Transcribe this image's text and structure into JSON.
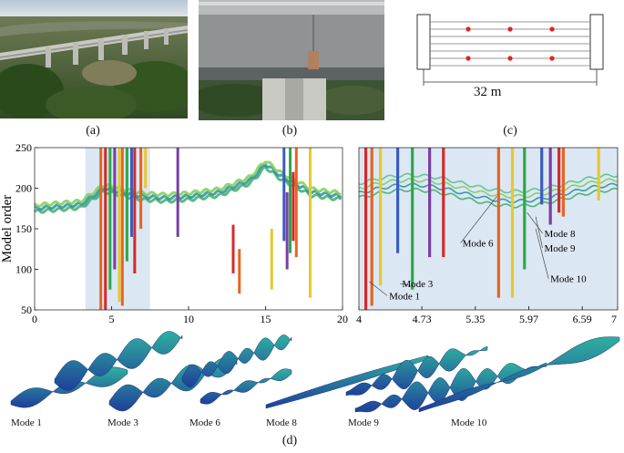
{
  "captions": {
    "a": "(a)",
    "b": "(b)",
    "c": "(c)",
    "d": "(d)"
  },
  "schematic": {
    "span_label": "32 m"
  },
  "chart_data": [
    {
      "type": "scatter",
      "ylabel": "Model order",
      "xlim": [
        0,
        20
      ],
      "ylim": [
        50,
        250
      ],
      "xticks": [
        "0",
        "5",
        "10",
        "15",
        "20"
      ],
      "yticks": [
        "50",
        "100",
        "150",
        "200",
        "250"
      ],
      "highlight_range": [
        3.3,
        7.5
      ],
      "stable_lines": [
        {
          "x": 4.3,
          "y_min": 50,
          "y_max": 250,
          "color": "#e8641e"
        },
        {
          "x": 4.6,
          "y_min": 50,
          "y_max": 250,
          "color": "#d42a2a"
        },
        {
          "x": 4.9,
          "y_min": 75,
          "y_max": 250,
          "color": "#2ea84a"
        },
        {
          "x": 5.2,
          "y_min": 100,
          "y_max": 250,
          "color": "#7a3ea0"
        },
        {
          "x": 5.5,
          "y_min": 60,
          "y_max": 250,
          "color": "#e8c82e"
        },
        {
          "x": 5.7,
          "y_min": 55,
          "y_max": 250,
          "color": "#e8641e"
        },
        {
          "x": 6.0,
          "y_min": 110,
          "y_max": 250,
          "color": "#2ea84a"
        },
        {
          "x": 6.3,
          "y_min": 140,
          "y_max": 250,
          "color": "#3a5cc0"
        },
        {
          "x": 6.5,
          "y_min": 95,
          "y_max": 250,
          "color": "#d42a2a"
        },
        {
          "x": 6.9,
          "y_min": 150,
          "y_max": 250,
          "color": "#e8641e"
        },
        {
          "x": 7.2,
          "y_min": 200,
          "y_max": 250,
          "color": "#e8c82e"
        },
        {
          "x": 9.3,
          "y_min": 140,
          "y_max": 250,
          "color": "#7a3ea0"
        },
        {
          "x": 12.9,
          "y_min": 95,
          "y_max": 155,
          "color": "#d42a2a"
        },
        {
          "x": 13.3,
          "y_min": 70,
          "y_max": 125,
          "color": "#e8641e"
        },
        {
          "x": 15.4,
          "y_min": 75,
          "y_max": 150,
          "color": "#e8c82e"
        },
        {
          "x": 16.2,
          "y_min": 135,
          "y_max": 250,
          "color": "#3a5cc0"
        },
        {
          "x": 16.4,
          "y_min": 100,
          "y_max": 195,
          "color": "#7a3ea0"
        },
        {
          "x": 16.6,
          "y_min": 120,
          "y_max": 250,
          "color": "#2ea84a"
        },
        {
          "x": 16.8,
          "y_min": 135,
          "y_max": 220,
          "color": "#d42a2a"
        },
        {
          "x": 17.0,
          "y_min": 115,
          "y_max": 250,
          "color": "#e8641e"
        },
        {
          "x": 17.9,
          "y_min": 65,
          "y_max": 250,
          "color": "#e8c82e"
        }
      ],
      "background_band": {
        "x": [
          0,
          3,
          4.5,
          7,
          8.5,
          10,
          12,
          14,
          15,
          16,
          17,
          18,
          20
        ],
        "y": [
          175,
          180,
          200,
          190,
          188,
          190,
          195,
          210,
          230,
          215,
          205,
          195,
          190
        ]
      }
    },
    {
      "type": "scatter",
      "xlim": [
        4,
        7
      ],
      "ylim": [
        50,
        250
      ],
      "xticks": [
        "4",
        "4.73",
        "5.35",
        "5.97",
        "6.59",
        "7"
      ],
      "xtick_values": [
        4,
        4.73,
        5.35,
        5.97,
        6.59,
        7
      ],
      "stable_lines": [
        {
          "x": 4.08,
          "y_min": 50,
          "y_max": 250,
          "color": "#d42a2a"
        },
        {
          "x": 4.15,
          "y_min": 55,
          "y_max": 250,
          "color": "#e8641e"
        },
        {
          "x": 4.25,
          "y_min": 80,
          "y_max": 250,
          "color": "#e8c82e"
        },
        {
          "x": 4.45,
          "y_min": 120,
          "y_max": 250,
          "color": "#3a5cc0"
        },
        {
          "x": 4.62,
          "y_min": 75,
          "y_max": 250,
          "color": "#2ea84a"
        },
        {
          "x": 4.82,
          "y_min": 115,
          "y_max": 250,
          "color": "#7a3ea0"
        },
        {
          "x": 4.98,
          "y_min": 115,
          "y_max": 250,
          "color": "#d42a2a"
        },
        {
          "x": 5.62,
          "y_min": 65,
          "y_max": 250,
          "color": "#e8641e"
        },
        {
          "x": 5.78,
          "y_min": 65,
          "y_max": 250,
          "color": "#e8c82e"
        },
        {
          "x": 5.92,
          "y_min": 100,
          "y_max": 250,
          "color": "#2ea84a"
        },
        {
          "x": 6.12,
          "y_min": 180,
          "y_max": 250,
          "color": "#3a5cc0"
        },
        {
          "x": 6.22,
          "y_min": 155,
          "y_max": 250,
          "color": "#7a3ea0"
        },
        {
          "x": 6.32,
          "y_min": 170,
          "y_max": 250,
          "color": "#d42a2a"
        },
        {
          "x": 6.37,
          "y_min": 165,
          "y_max": 250,
          "color": "#e8641e"
        },
        {
          "x": 6.78,
          "y_min": 185,
          "y_max": 250,
          "color": "#e8c82e"
        }
      ],
      "annotations": [
        {
          "text": "Mode 1",
          "point": [
            4.12,
            85
          ],
          "label": [
            4.35,
            63
          ]
        },
        {
          "text": "Mode 3",
          "point": [
            4.6,
            80
          ],
          "label": [
            4.5,
            78
          ]
        },
        {
          "text": "Mode 6",
          "point": [
            5.6,
            190
          ],
          "label": [
            5.2,
            128
          ]
        },
        {
          "text": "Mode 8",
          "point": [
            5.95,
            170
          ],
          "label": [
            6.15,
            140
          ]
        },
        {
          "text": "Mode 9",
          "point": [
            6.05,
            165
          ],
          "label": [
            6.15,
            122
          ]
        },
        {
          "text": "Mode 10",
          "point": [
            6.05,
            150
          ],
          "label": [
            6.22,
            84
          ]
        }
      ]
    }
  ],
  "mode_shapes": {
    "labels": [
      "Mode 1",
      "Mode 3",
      "Mode 6",
      "Mode 8",
      "Mode 9",
      "Mode 10"
    ]
  }
}
